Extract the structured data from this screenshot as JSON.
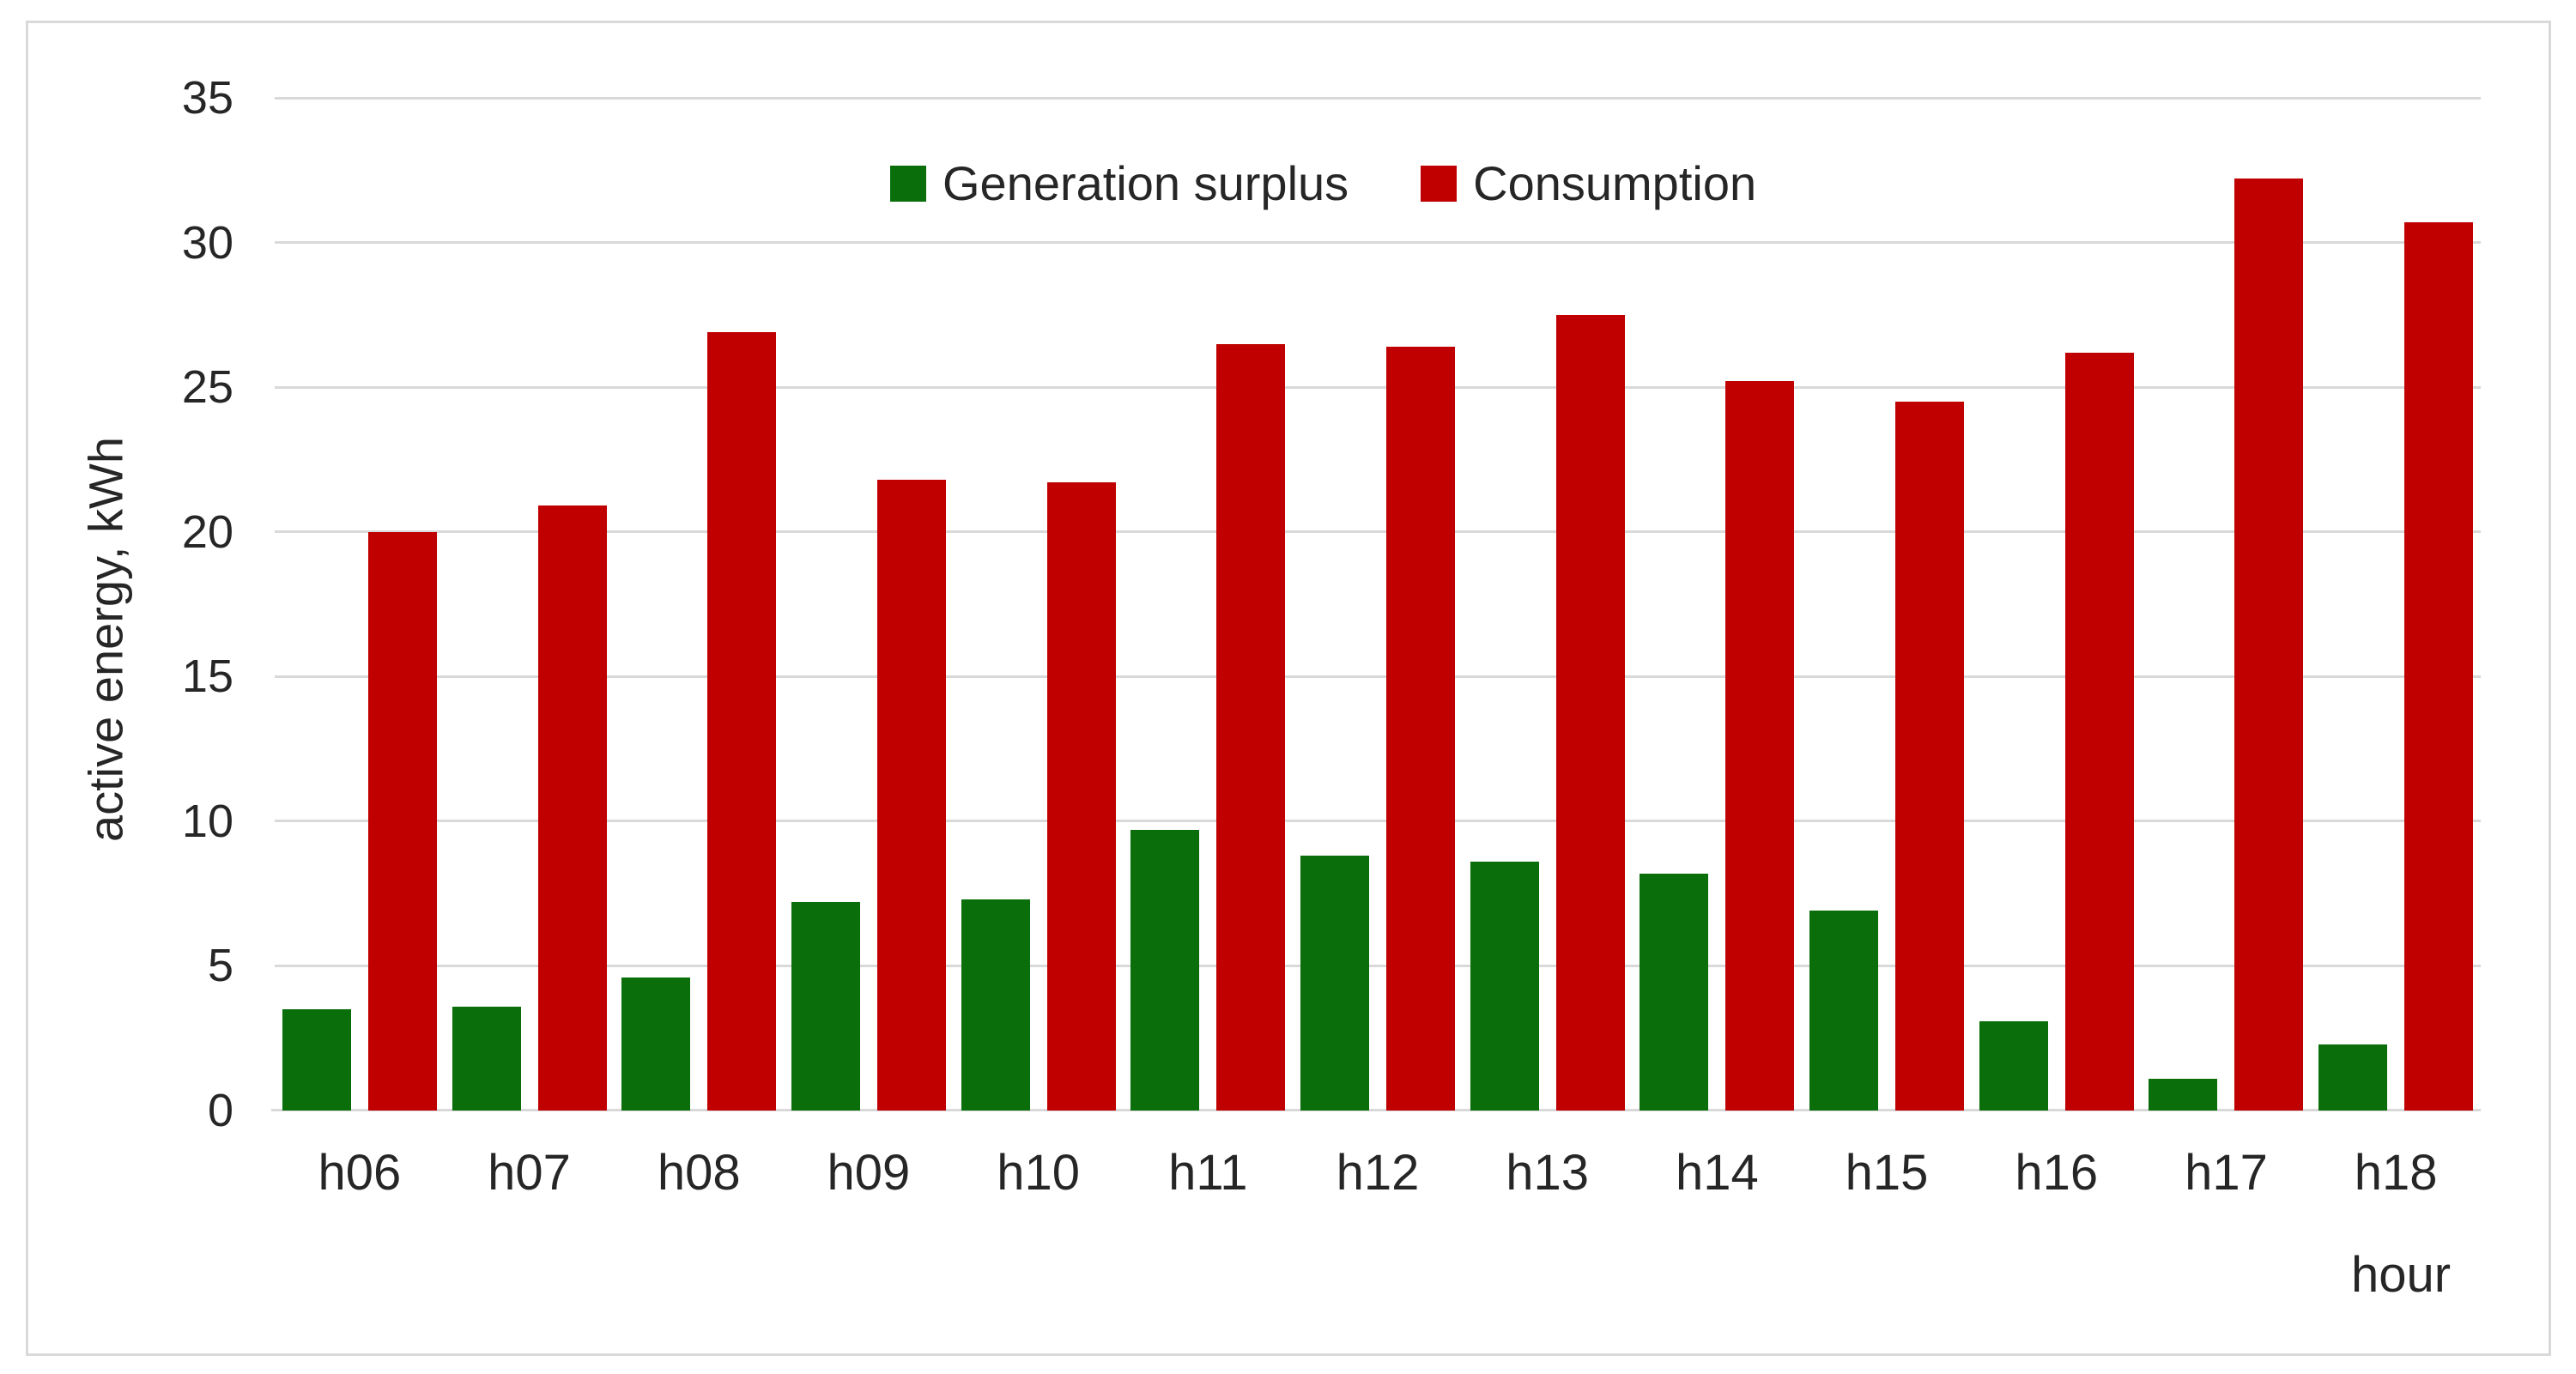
{
  "chart_data": {
    "type": "bar",
    "title": "",
    "categories": [
      "h06",
      "h07",
      "h08",
      "h09",
      "h10",
      "h11",
      "h12",
      "h13",
      "h14",
      "h15",
      "h16",
      "h17",
      "h18"
    ],
    "series": [
      {
        "name": "Generation surplus",
        "color": "#0A6F0A",
        "values": [
          3.5,
          3.6,
          4.6,
          7.2,
          7.3,
          9.7,
          8.8,
          8.6,
          8.2,
          6.9,
          3.1,
          1.1,
          2.3
        ]
      },
      {
        "name": "Consumption",
        "color": "#C00000",
        "values": [
          20.0,
          20.9,
          26.9,
          21.8,
          21.7,
          26.5,
          26.4,
          27.5,
          25.2,
          24.5,
          26.2,
          32.2,
          30.7
        ]
      }
    ],
    "xlabel": "hour",
    "ylabel": "active energy, kWh",
    "ylim": [
      0,
      35
    ],
    "ytick_step": 5,
    "yticks": [
      0,
      5,
      10,
      15,
      20,
      25,
      30,
      35
    ],
    "grid": true,
    "legend_position": "top-center"
  },
  "colors": {
    "background": "#FFFFFF",
    "border": "#D9D9D9",
    "gridline": "#D9D9D9",
    "text": "#262626",
    "generation_surplus": "#0A6F0A",
    "consumption": "#C00000"
  }
}
